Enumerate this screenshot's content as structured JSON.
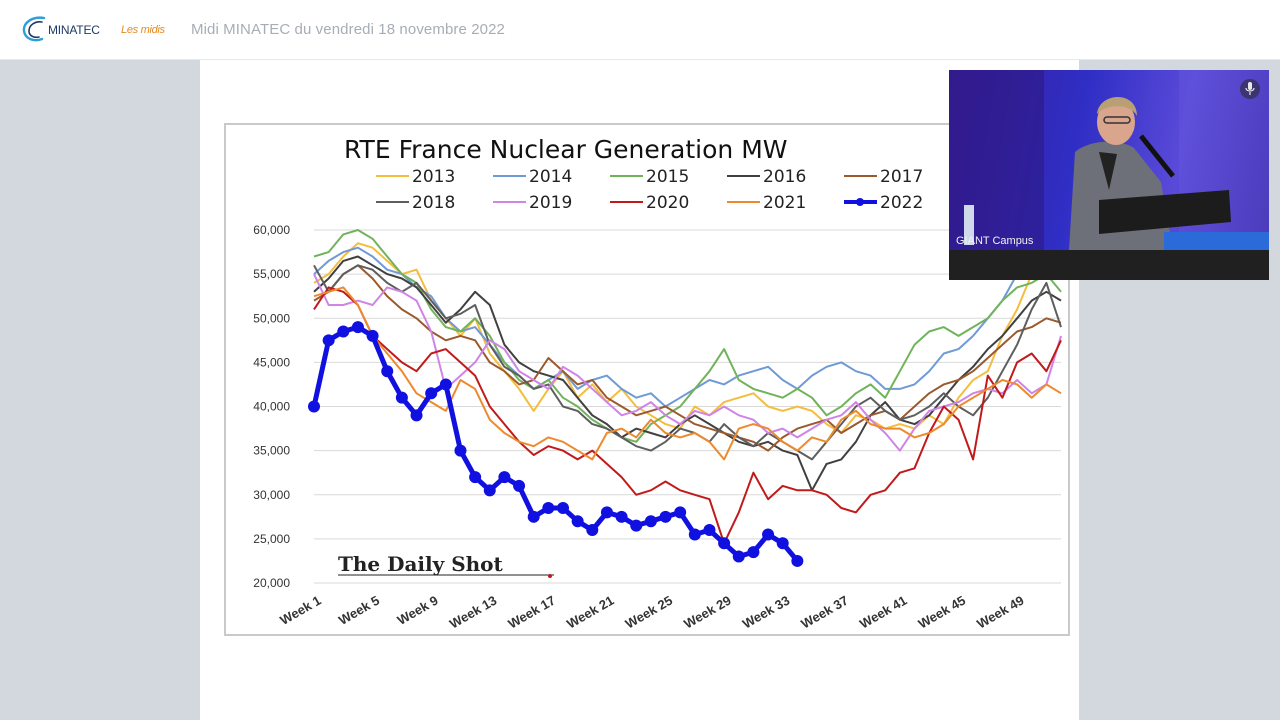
{
  "header": {
    "logo_brand": "MINATEC",
    "logo_sub": "Les midis",
    "session_title": "Midi MINATEC du vendredi 18 novembre 2022"
  },
  "camera": {
    "label": "GIANT Campus",
    "video_icon": "video-camera-icon",
    "mic_icon": "microphone-icon"
  },
  "colors": {
    "2013": "#f4bd3e",
    "2014": "#6f9ad6",
    "2015": "#71b35a",
    "2016": "#404040",
    "2017": "#9a5a2e",
    "2018": "#5e5e5e",
    "2019": "#cf84e6",
    "2020": "#c11a1a",
    "2021": "#ee8a2e",
    "2022": "#1010e0"
  },
  "chart_data": {
    "type": "line",
    "title": "RTE France Nuclear Generation MW",
    "watermark": "The Daily Shot",
    "ylim": [
      20000,
      60000
    ],
    "y_ticks": [
      "60,000",
      "55,000",
      "50,000",
      "45,000",
      "40,000",
      "35,000",
      "30,000",
      "25,000",
      "20,000"
    ],
    "x_ticks": [
      "Week 1",
      "Week 5",
      "Week 9",
      "Week 13",
      "Week 17",
      "Week 21",
      "Week 25",
      "Week 29",
      "Week 33",
      "Week 37",
      "Week 41",
      "Week 45",
      "Week 49"
    ],
    "legend_placement": "top",
    "series": [
      {
        "name": "2013",
        "values": [
          54000,
          55000,
          57000,
          58500,
          58000,
          56500,
          55000,
          55500,
          52000,
          50000,
          48000,
          50000,
          46000,
          44000,
          42000,
          39500,
          42000,
          44000,
          41000,
          42500,
          40500,
          42000,
          40000,
          39000,
          38000,
          37500,
          40000,
          39000,
          40500,
          41000,
          41500,
          40000,
          39500,
          40000,
          39500,
          38000,
          37000,
          39000,
          38500,
          37500,
          38000,
          37500,
          39000,
          38000,
          41000,
          43000,
          44000,
          48000,
          51000,
          55000,
          57000,
          58000
        ]
      },
      {
        "name": "2014",
        "values": [
          55000,
          56500,
          57500,
          58000,
          57000,
          55500,
          55000,
          53500,
          52500,
          50000,
          48500,
          49000,
          47000,
          45000,
          43500,
          42000,
          43000,
          44000,
          42000,
          43000,
          43500,
          42000,
          41000,
          41500,
          40000,
          41000,
          42000,
          43000,
          42500,
          43500,
          44000,
          44500,
          43000,
          42000,
          43500,
          44500,
          45000,
          44000,
          43500,
          42000,
          42000,
          42500,
          44000,
          46000,
          46500,
          48000,
          50000,
          52000,
          55000,
          57500,
          58000,
          57500
        ]
      },
      {
        "name": "2015",
        "values": [
          57000,
          57500,
          59500,
          60000,
          59000,
          57000,
          55000,
          54000,
          51000,
          49000,
          48500,
          50000,
          48000,
          45000,
          43000,
          42000,
          43000,
          41000,
          40000,
          38500,
          37500,
          36500,
          36000,
          38000,
          39000,
          40000,
          42000,
          44000,
          46500,
          43000,
          42000,
          41500,
          41000,
          42000,
          41000,
          39000,
          40000,
          41500,
          42500,
          41000,
          44000,
          47000,
          48500,
          49000,
          48000,
          49000,
          50000,
          52000,
          53500,
          54000,
          55000,
          53000
        ]
      },
      {
        "name": "2016",
        "values": [
          53000,
          54500,
          56500,
          57000,
          56000,
          55000,
          54500,
          53500,
          51500,
          49500,
          51000,
          53000,
          51500,
          47000,
          45000,
          44000,
          43500,
          43000,
          41000,
          39000,
          38000,
          36500,
          37500,
          37000,
          36500,
          38000,
          39000,
          38000,
          37000,
          36000,
          35500,
          36000,
          35000,
          34500,
          30500,
          33500,
          34000,
          36000,
          39000,
          40500,
          38500,
          38000,
          39000,
          41000,
          43000,
          44500,
          46500,
          48000,
          50000,
          52000,
          53000,
          52000
        ]
      },
      {
        "name": "2017",
        "values": [
          52000,
          53000,
          55000,
          56000,
          54500,
          52500,
          51000,
          50000,
          48500,
          47500,
          48000,
          47500,
          45000,
          44000,
          42500,
          43000,
          45500,
          44000,
          42500,
          43000,
          41000,
          40000,
          39000,
          39500,
          40000,
          39000,
          38000,
          37500,
          37000,
          36500,
          36000,
          35000,
          36500,
          37500,
          38000,
          38500,
          37000,
          38000,
          39000,
          39500,
          38500,
          40000,
          41500,
          42500,
          43000,
          44000,
          45500,
          47000,
          48500,
          49000,
          50000,
          49500
        ]
      },
      {
        "name": "2018",
        "values": [
          56000,
          53000,
          55000,
          56000,
          55500,
          54000,
          53000,
          54000,
          52000,
          50000,
          50500,
          51500,
          47000,
          44500,
          43500,
          42000,
          42500,
          40000,
          39500,
          38000,
          37500,
          36500,
          35500,
          35000,
          36000,
          37500,
          37000,
          36000,
          38000,
          36500,
          35500,
          37000,
          36000,
          35000,
          34000,
          36000,
          38000,
          40000,
          41000,
          39500,
          38500,
          39000,
          40000,
          41500,
          40000,
          39000,
          41000,
          44000,
          47000,
          51000,
          54000,
          49000
        ]
      },
      {
        "name": "2019",
        "values": [
          55000,
          51500,
          51500,
          52000,
          51500,
          53500,
          53000,
          52000,
          48500,
          42000,
          43500,
          45000,
          47500,
          46500,
          44000,
          43000,
          42000,
          44500,
          43500,
          42000,
          40500,
          39000,
          39500,
          40500,
          39000,
          38000,
          39500,
          39000,
          40000,
          39000,
          38500,
          37000,
          37500,
          36500,
          37500,
          38500,
          39000,
          40500,
          38500,
          37000,
          35000,
          37500,
          39500,
          40000,
          40500,
          41500,
          42000,
          41500,
          43000,
          41500,
          42500,
          48000
        ]
      },
      {
        "name": "2020",
        "values": [
          51000,
          53500,
          53000,
          51500,
          48000,
          46500,
          45000,
          44000,
          46000,
          46500,
          45000,
          43500,
          40000,
          38000,
          36000,
          34500,
          35500,
          35000,
          34000,
          35000,
          33500,
          32000,
          30000,
          30500,
          31500,
          30500,
          30000,
          29500,
          24500,
          28000,
          32500,
          29500,
          31000,
          30500,
          30500,
          30000,
          28500,
          28000,
          30000,
          30500,
          32500,
          33000,
          37000,
          40000,
          38500,
          34000,
          43500,
          41000,
          45000,
          46000,
          44000,
          47500
        ]
      },
      {
        "name": "2021",
        "values": [
          52500,
          53000,
          53500,
          51500,
          48000,
          46000,
          44000,
          41500,
          40500,
          39500,
          43000,
          42000,
          38500,
          37000,
          36000,
          35500,
          36500,
          36000,
          35000,
          34000,
          37000,
          37500,
          36500,
          38500,
          37000,
          36500,
          37000,
          36000,
          34000,
          37500,
          38000,
          37500,
          36000,
          35000,
          36500,
          36000,
          38500,
          39500,
          38000,
          37500,
          37500,
          36500,
          37000,
          38000,
          40000,
          41000,
          42000,
          43000,
          42500,
          41000,
          42500,
          41500
        ]
      },
      {
        "name": "2022",
        "values": [
          40000,
          47500,
          48500,
          49000,
          48000,
          44000,
          41000,
          39000,
          41500,
          42500,
          35000,
          32000,
          30500,
          32000,
          31000,
          27500,
          28500,
          28500,
          27000,
          26000,
          28000,
          27500,
          26500,
          27000,
          27500,
          28000,
          25500,
          26000,
          24500,
          23000,
          23500,
          25500,
          24500,
          22500
        ]
      }
    ]
  }
}
